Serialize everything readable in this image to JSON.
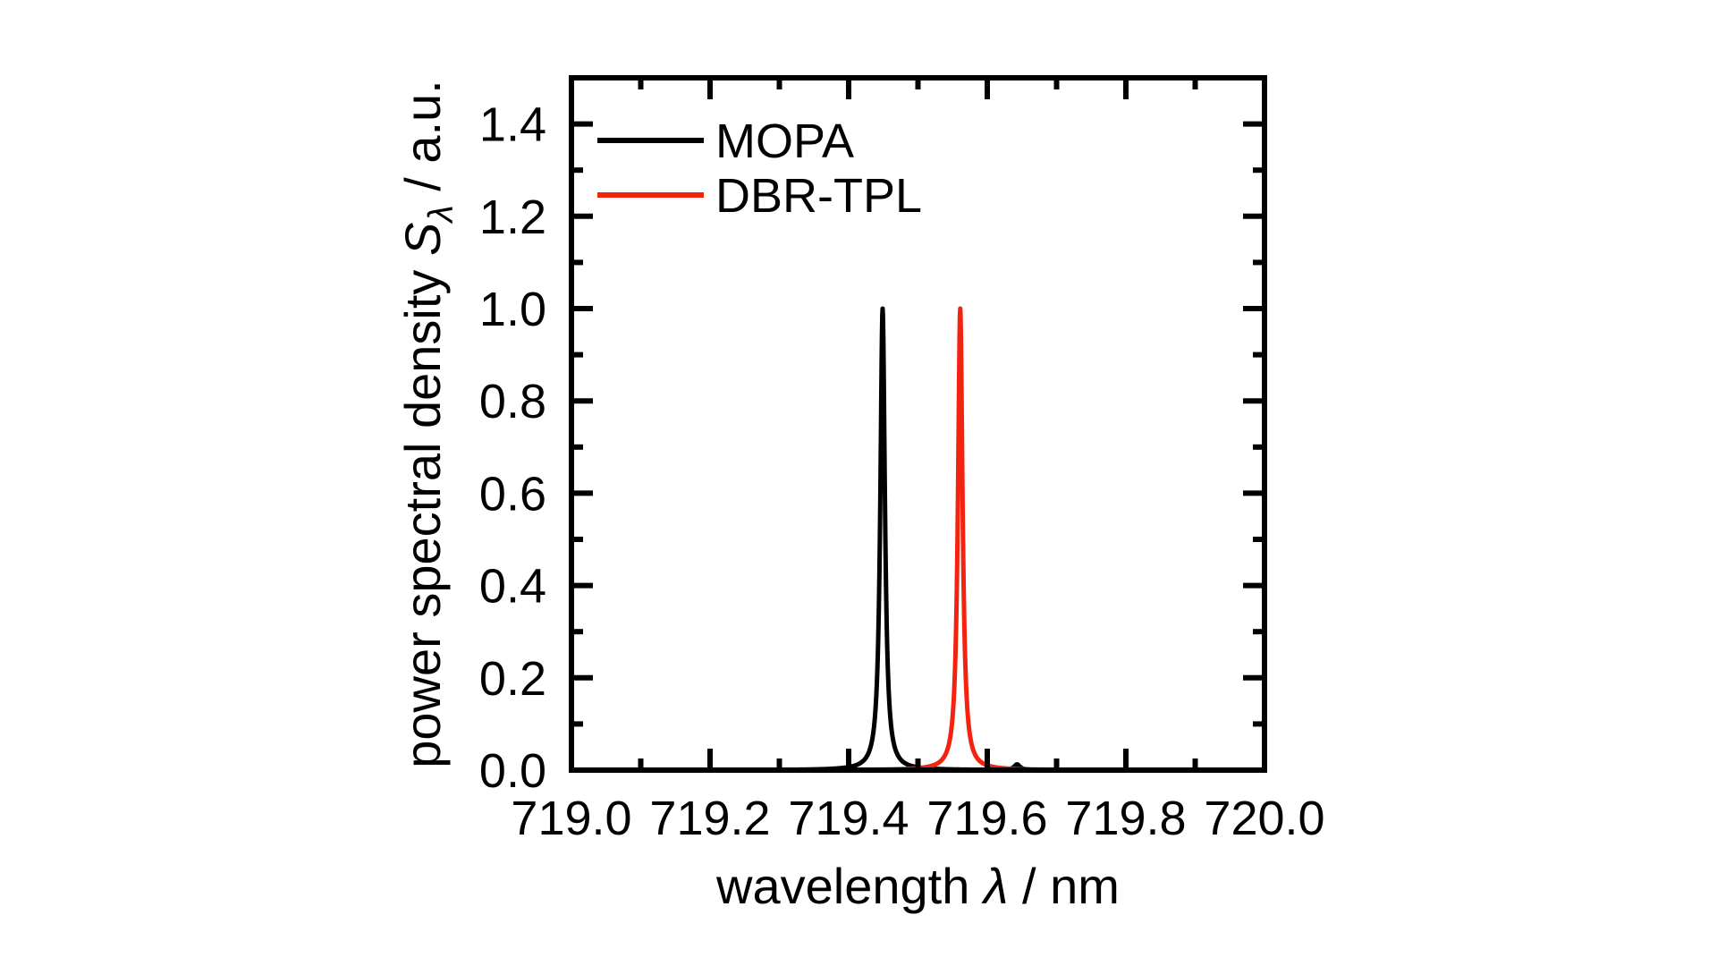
{
  "chart_data": {
    "type": "line",
    "title": "",
    "xlabel_parts": [
      {
        "t": "wavelength ",
        "italic": false
      },
      {
        "t": "λ",
        "italic": true
      },
      {
        "t": " / nm",
        "italic": false
      }
    ],
    "ylabel_parts": [
      {
        "t": "power spectral density ",
        "italic": false
      },
      {
        "t": "S",
        "italic": true
      },
      {
        "t": "λ",
        "italic": true,
        "sub": true
      },
      {
        "t": " / a.u.",
        "italic": false
      }
    ],
    "x_range": [
      719.0,
      720.0
    ],
    "y_range": [
      0.0,
      1.5
    ],
    "x_major_ticks": [
      {
        "v": 719.0,
        "label": "719.0"
      },
      {
        "v": 719.2,
        "label": "719.2"
      },
      {
        "v": 719.4,
        "label": "719.4"
      },
      {
        "v": 719.6,
        "label": "719.6"
      },
      {
        "v": 719.8,
        "label": "719.8"
      },
      {
        "v": 720.0,
        "label": "720.0"
      }
    ],
    "x_minor_ticks": [
      719.1,
      719.3,
      719.5,
      719.7,
      719.9
    ],
    "y_major_ticks": [
      {
        "v": 0.0,
        "label": "0.0"
      },
      {
        "v": 0.2,
        "label": "0.2"
      },
      {
        "v": 0.4,
        "label": "0.4"
      },
      {
        "v": 0.6,
        "label": "0.6"
      },
      {
        "v": 0.8,
        "label": "0.8"
      },
      {
        "v": 1.0,
        "label": "1.0"
      },
      {
        "v": 1.2,
        "label": "1.2"
      },
      {
        "v": 1.4,
        "label": "1.4"
      }
    ],
    "y_minor_ticks": [
      0.1,
      0.3,
      0.5,
      0.7,
      0.9,
      1.1,
      1.3
    ],
    "grid": false,
    "legend_position": "top-left-inside",
    "series": [
      {
        "name": "MOPA",
        "color": "#000000",
        "baseline": 0.0,
        "peaks": [
          {
            "center": 719.449,
            "height": 1.0,
            "fwhm": 0.008
          },
          {
            "center": 719.643,
            "height": 0.012,
            "fwhm": 0.01
          }
        ]
      },
      {
        "name": "DBR-TPL",
        "color": "#f3230f",
        "baseline": 0.0,
        "peaks": [
          {
            "center": 719.561,
            "height": 1.0,
            "fwhm": 0.008
          }
        ]
      }
    ]
  }
}
